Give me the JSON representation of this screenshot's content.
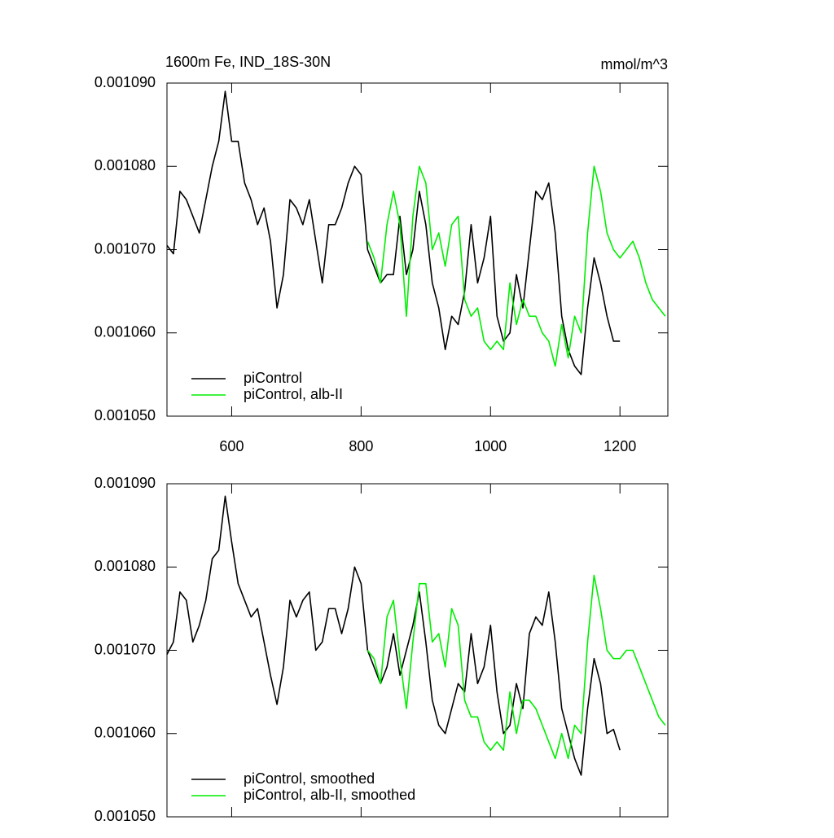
{
  "chart_data": [
    {
      "type": "line",
      "title": "1600m Fe, IND_18S-30N",
      "units": "mmol/m^3",
      "x": [
        500,
        510,
        520,
        530,
        540,
        550,
        560,
        570,
        580,
        590,
        600,
        610,
        620,
        630,
        640,
        650,
        660,
        670,
        680,
        690,
        700,
        710,
        720,
        730,
        740,
        750,
        760,
        770,
        780,
        790,
        800,
        810,
        820,
        830,
        840,
        850,
        860,
        870,
        880,
        890,
        900,
        910,
        920,
        930,
        940,
        950,
        960,
        970,
        980,
        990,
        1000,
        1010,
        1020,
        1030,
        1040,
        1050,
        1060,
        1070,
        1080,
        1090,
        1100,
        1110,
        1120,
        1130,
        1140,
        1150,
        1160,
        1170,
        1180,
        1190,
        1200,
        1210,
        1220,
        1230,
        1240,
        1250,
        1260,
        1270
      ],
      "xlim": [
        500,
        1274
      ],
      "xticks": [
        600,
        800,
        1000,
        1200
      ],
      "ylim": [
        0.00105,
        0.00109
      ],
      "yticks": [
        {
          "value": 0.00105,
          "label": "0.001050"
        },
        {
          "value": 0.00106,
          "label": "0.001060"
        },
        {
          "value": 0.00107,
          "label": "0.001070"
        },
        {
          "value": 0.00108,
          "label": "0.001080"
        },
        {
          "value": 0.00109,
          "label": "0.001090"
        }
      ],
      "legend": "lower left",
      "series": [
        {
          "name": "piControl",
          "color": "#000000",
          "values": [
            0.0010705,
            0.0010695,
            0.001077,
            0.001076,
            0.001074,
            0.001072,
            0.001076,
            0.00108,
            0.001083,
            0.001089,
            0.001083,
            0.001083,
            0.001078,
            0.001076,
            0.001073,
            0.001075,
            0.001071,
            0.001063,
            0.001067,
            0.001076,
            0.001075,
            0.001073,
            0.001076,
            0.001071,
            0.001066,
            0.001073,
            0.001073,
            0.001075,
            0.001078,
            0.00108,
            0.001079,
            0.00107,
            0.001068,
            0.001066,
            0.001067,
            0.001067,
            0.001074,
            0.001067,
            0.00107,
            0.001077,
            0.001073,
            0.001066,
            0.001063,
            0.001058,
            0.001062,
            0.001061,
            0.001065,
            0.001073,
            0.001066,
            0.001069,
            0.001074,
            0.001062,
            0.001059,
            0.00106,
            0.001067,
            0.001063,
            0.00107,
            0.001077,
            0.001076,
            0.001078,
            0.001072,
            0.001062,
            0.001058,
            0.001056,
            0.001055,
            0.001063,
            0.001069,
            0.001066,
            0.001062,
            0.001059,
            0.001059,
            null,
            null,
            null,
            null,
            null,
            null,
            null
          ]
        },
        {
          "name": "piControl, alb-II",
          "color": "#00ee00",
          "values": [
            null,
            null,
            null,
            null,
            null,
            null,
            null,
            null,
            null,
            null,
            null,
            null,
            null,
            null,
            null,
            null,
            null,
            null,
            null,
            null,
            null,
            null,
            null,
            null,
            null,
            null,
            null,
            null,
            null,
            null,
            null,
            0.001071,
            0.001069,
            0.001066,
            0.001073,
            0.001077,
            0.001073,
            0.001062,
            0.001074,
            0.00108,
            0.001078,
            0.00107,
            0.001072,
            0.001068,
            0.001073,
            0.001074,
            0.001064,
            0.001062,
            0.001063,
            0.001059,
            0.001058,
            0.001059,
            0.001058,
            0.001066,
            0.001061,
            0.001064,
            0.001062,
            0.001062,
            0.00106,
            0.001059,
            0.001056,
            0.001061,
            0.001057,
            0.001062,
            0.00106,
            0.001072,
            0.00108,
            0.001077,
            0.001072,
            0.00107,
            0.001069,
            0.00107,
            0.001071,
            0.001069,
            0.001066,
            0.001064,
            0.001063,
            0.001062
          ]
        }
      ]
    },
    {
      "type": "line",
      "x": [
        500,
        510,
        520,
        530,
        540,
        550,
        560,
        570,
        580,
        590,
        600,
        610,
        620,
        630,
        640,
        650,
        660,
        670,
        680,
        690,
        700,
        710,
        720,
        730,
        740,
        750,
        760,
        770,
        780,
        790,
        800,
        810,
        820,
        830,
        840,
        850,
        860,
        870,
        880,
        890,
        900,
        910,
        920,
        930,
        940,
        950,
        960,
        970,
        980,
        990,
        1000,
        1010,
        1020,
        1030,
        1040,
        1050,
        1060,
        1070,
        1080,
        1090,
        1100,
        1110,
        1120,
        1130,
        1140,
        1150,
        1160,
        1170,
        1180,
        1190,
        1200,
        1210,
        1220,
        1230,
        1240,
        1250,
        1260,
        1270
      ],
      "xlim": [
        500,
        1274
      ],
      "ylim": [
        0.00105,
        0.00109
      ],
      "yticks": [
        {
          "value": 0.00105,
          "label": "0.001050"
        },
        {
          "value": 0.00106,
          "label": "0.001060"
        },
        {
          "value": 0.00107,
          "label": "0.001070"
        },
        {
          "value": 0.00108,
          "label": "0.001080"
        },
        {
          "value": 0.00109,
          "label": "0.001090"
        }
      ],
      "legend": "lower left",
      "series": [
        {
          "name": "piControl, smoothed",
          "color": "#000000",
          "values": [
            0.0010695,
            0.001071,
            0.001077,
            0.001076,
            0.001071,
            0.001073,
            0.001076,
            0.001081,
            0.001082,
            0.0010885,
            0.001083,
            0.001078,
            0.001076,
            0.001074,
            0.001075,
            0.001071,
            0.001067,
            0.0010635,
            0.001068,
            0.001076,
            0.001074,
            0.001076,
            0.001077,
            0.00107,
            0.001071,
            0.001075,
            0.001075,
            0.001072,
            0.001075,
            0.00108,
            0.001078,
            0.00107,
            0.001068,
            0.001066,
            0.001068,
            0.001072,
            0.001067,
            0.00107,
            0.001073,
            0.001077,
            0.001071,
            0.001064,
            0.001061,
            0.00106,
            0.001063,
            0.001066,
            0.001065,
            0.001072,
            0.001066,
            0.001068,
            0.001073,
            0.001065,
            0.00106,
            0.001061,
            0.001066,
            0.001063,
            0.001072,
            0.001074,
            0.001073,
            0.001077,
            0.001071,
            0.001063,
            0.00106,
            0.001057,
            0.001055,
            0.001063,
            0.001069,
            0.001066,
            0.00106,
            0.0010605,
            0.001058,
            null,
            null,
            null,
            null,
            null,
            null,
            null
          ]
        },
        {
          "name": "piControl, alb-II, smoothed",
          "color": "#00ee00",
          "values": [
            null,
            null,
            null,
            null,
            null,
            null,
            null,
            null,
            null,
            null,
            null,
            null,
            null,
            null,
            null,
            null,
            null,
            null,
            null,
            null,
            null,
            null,
            null,
            null,
            null,
            null,
            null,
            null,
            null,
            null,
            null,
            0.00107,
            0.001069,
            0.001066,
            0.001074,
            0.001076,
            0.001069,
            0.001063,
            0.001071,
            0.001078,
            0.001078,
            0.001071,
            0.001072,
            0.001068,
            0.001075,
            0.001073,
            0.001064,
            0.001062,
            0.001062,
            0.001059,
            0.001058,
            0.001059,
            0.001058,
            0.001065,
            0.00106,
            0.001064,
            0.001064,
            0.001063,
            0.001061,
            0.001059,
            0.001057,
            0.00106,
            0.001057,
            0.001061,
            0.00106,
            0.001071,
            0.001079,
            0.001075,
            0.00107,
            0.001069,
            0.001069,
            0.00107,
            0.00107,
            0.001068,
            0.001066,
            0.001064,
            0.001062,
            0.001061
          ]
        }
      ]
    }
  ]
}
